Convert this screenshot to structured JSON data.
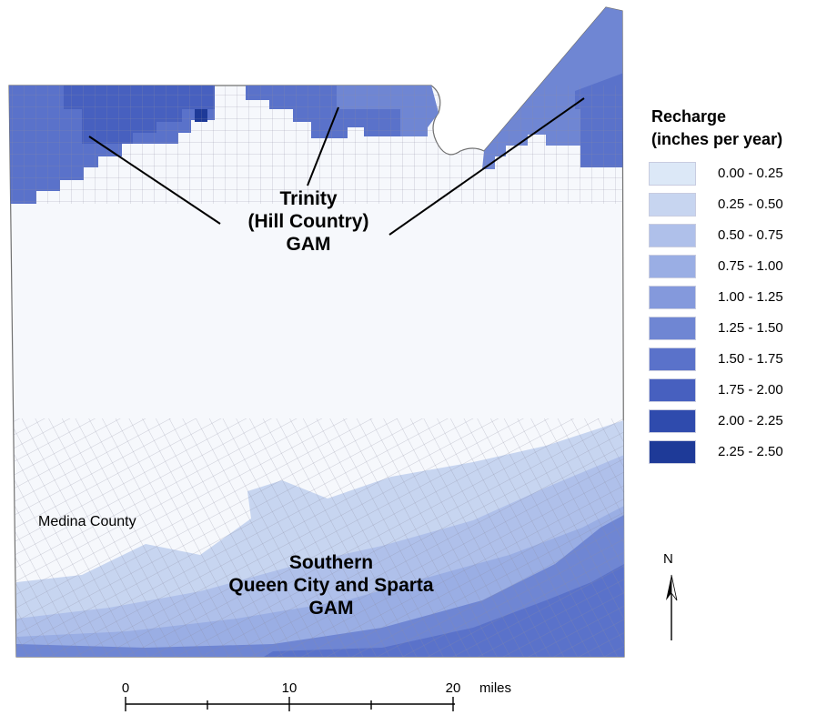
{
  "map": {
    "gam_labels": {
      "trinity": [
        "Trinity",
        "(Hill Country)",
        "GAM"
      ],
      "southern": [
        "Southern",
        "Queen City and Sparta",
        "GAM"
      ]
    },
    "county_label": "Medina County",
    "colors": {
      "county_fill": "#f6f8fc",
      "county_outline": "#707070",
      "grid_line": "#8c8ca0",
      "leader_line": "#000000"
    }
  },
  "legend": {
    "title_line1": "Recharge",
    "title_line2": "(inches per year)",
    "classes": [
      {
        "label": "0.00 - 0.25",
        "color": "#dce8f7"
      },
      {
        "label": "0.25 - 0.50",
        "color": "#c7d5f0"
      },
      {
        "label": "0.50 - 0.75",
        "color": "#afc0ea"
      },
      {
        "label": "0.75 - 1.00",
        "color": "#9aaee4"
      },
      {
        "label": "1.00 - 1.25",
        "color": "#8499dc"
      },
      {
        "label": "1.25 - 1.50",
        "color": "#6f86d3"
      },
      {
        "label": "1.50 - 1.75",
        "color": "#5a72ca"
      },
      {
        "label": "1.75 - 2.00",
        "color": "#4760bf"
      },
      {
        "label": "2.00 - 2.25",
        "color": "#2f4bad"
      },
      {
        "label": "2.25 - 2.50",
        "color": "#1e3a98"
      }
    ]
  },
  "scale_bar": {
    "ticks": [
      "0",
      "10",
      "20"
    ],
    "units": "miles"
  },
  "north_arrow": {
    "letter": "N"
  }
}
